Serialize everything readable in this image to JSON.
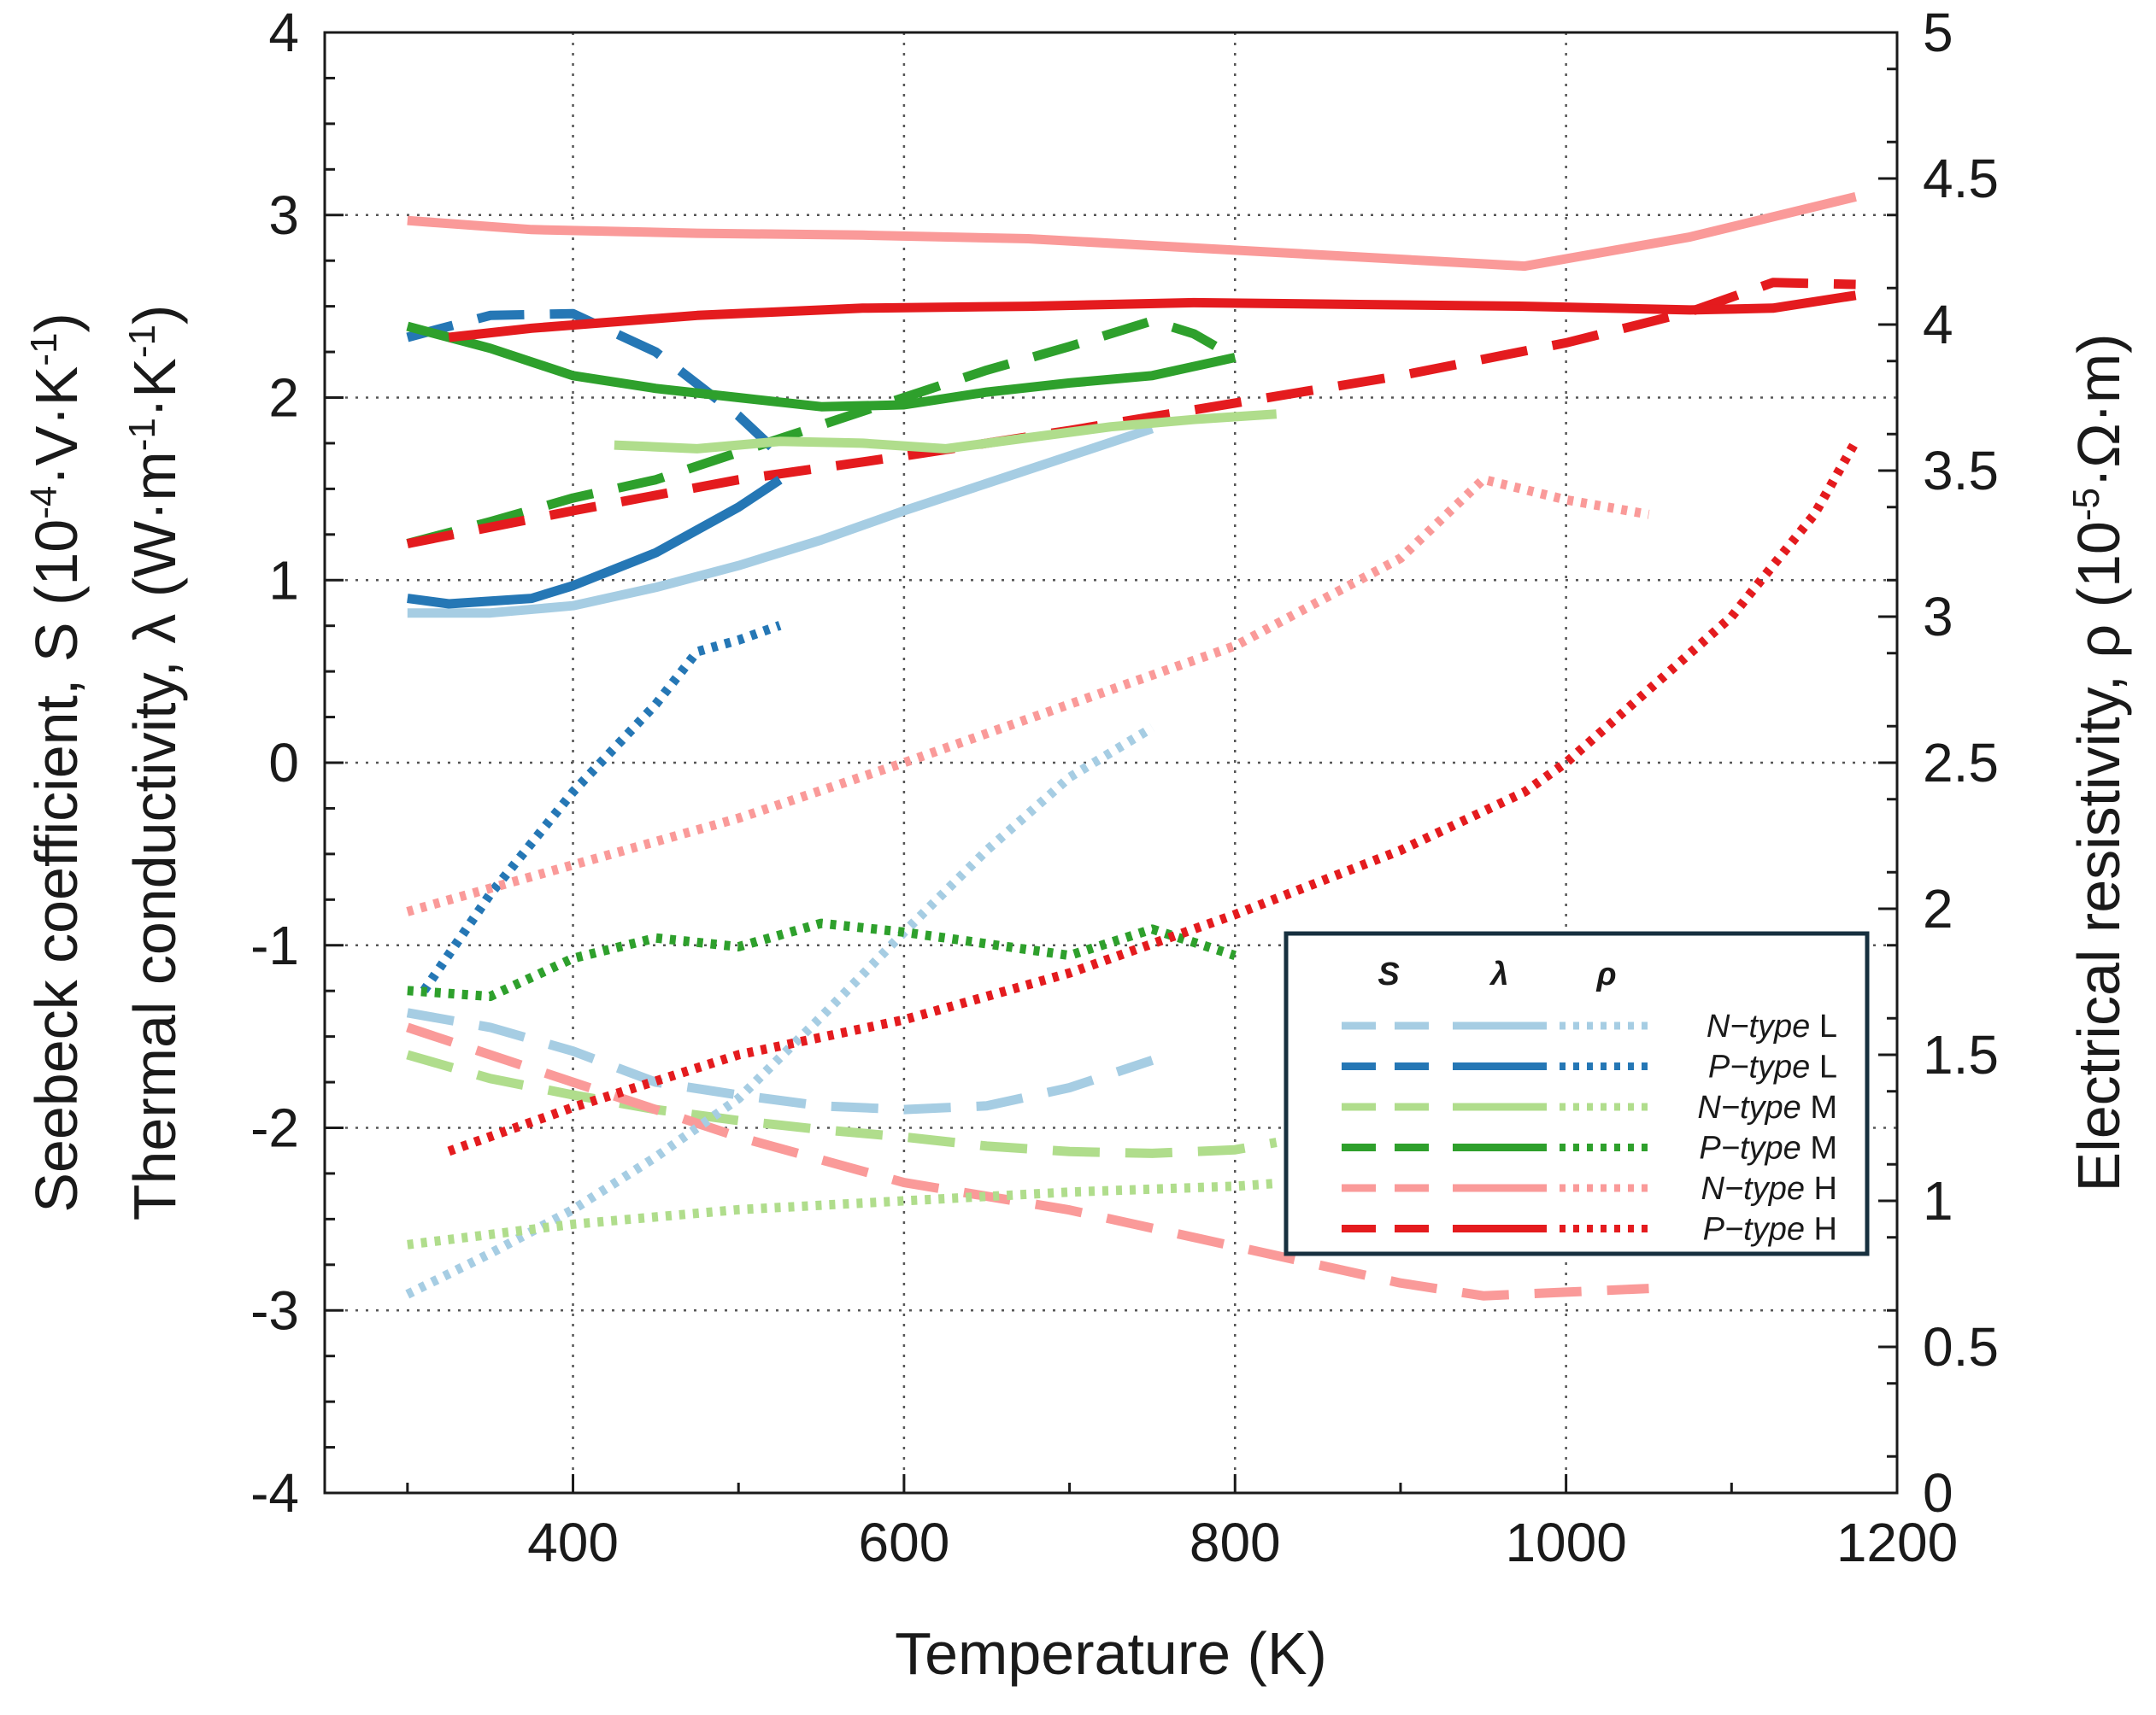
{
  "chart_data": {
    "type": "line",
    "x_axis": {
      "label": "Temperature (K)",
      "range": [
        250,
        1200
      ],
      "ticks": [
        400,
        600,
        800,
        1000,
        1200
      ],
      "tick_labels": [
        "400",
        "600",
        "800",
        "1000",
        "1200"
      ]
    },
    "y_axis_left": {
      "label_line1": "Seebeck coefficient, S (10",
      "label_line1_sup1": "-4",
      "label_line1_mid": "·V·K",
      "label_line1_sup2": "-1",
      "label_line1_end": ")",
      "label_line2": "Thermal conductivity, λ (W·m",
      "label_line2_sup1": "-1",
      "label_line2_mid": "·K",
      "label_line2_sup2": "-1",
      "label_line2_end": ")",
      "range": [
        -4,
        4
      ],
      "ticks": [
        -4,
        -3,
        -2,
        -1,
        0,
        1,
        2,
        3,
        4
      ],
      "tick_labels": [
        "-4",
        "-3",
        "-2",
        "-1",
        "0",
        "1",
        "2",
        "3",
        "4"
      ]
    },
    "y_axis_right": {
      "label": "Electrical resistivity, ρ (10",
      "label_sup": "-5",
      "label_end": "·Ω·m)",
      "range": [
        0,
        5
      ],
      "ticks": [
        0,
        0.5,
        1,
        1.5,
        2,
        2.5,
        3,
        3.5,
        4,
        4.5,
        5
      ],
      "tick_labels": [
        "0",
        "0.5",
        "1",
        "1.5",
        "2",
        "2.5",
        "3",
        "3.5",
        "4",
        "4.5",
        "5"
      ]
    },
    "grid": true,
    "legend_position": "bottom-right",
    "legend": {
      "headers": [
        "S",
        "λ",
        "ρ"
      ],
      "rows": [
        {
          "type": "N−type",
          "grade": "L",
          "color": "#a6cde3"
        },
        {
          "type": "P−type",
          "grade": "L",
          "color": "#2577b5"
        },
        {
          "type": "N−type",
          "grade": "M",
          "color": "#b0dd8c"
        },
        {
          "type": "P−type",
          "grade": "M",
          "color": "#2ea02c"
        },
        {
          "type": "N−type",
          "grade": "H",
          "color": "#fa9a99"
        },
        {
          "type": "P−type",
          "grade": "H",
          "color": "#e41b1e"
        }
      ]
    },
    "series": [
      {
        "quantity": "S",
        "material": "N-type L",
        "axis": "left",
        "color": "#a6cde3",
        "dash": "dashed",
        "x": [
          300,
          350,
          400,
          450,
          500,
          550,
          600,
          650,
          700,
          750
        ],
        "y": [
          -1.37,
          -1.45,
          -1.58,
          -1.75,
          -1.82,
          -1.88,
          -1.9,
          -1.88,
          -1.78,
          -1.63
        ]
      },
      {
        "quantity": "S",
        "material": "P-type L",
        "axis": "left",
        "color": "#2577b5",
        "dash": "dashed",
        "x": [
          300,
          350,
          400,
          450,
          500,
          520
        ],
        "y": [
          2.33,
          2.45,
          2.46,
          2.25,
          1.9,
          1.73
        ]
      },
      {
        "quantity": "S",
        "material": "N-type M",
        "axis": "left",
        "color": "#b0dd8c",
        "dash": "dashed",
        "x": [
          300,
          350,
          400,
          450,
          500,
          550,
          600,
          650,
          700,
          750,
          800,
          825
        ],
        "y": [
          -1.6,
          -1.73,
          -1.82,
          -1.9,
          -1.96,
          -2.01,
          -2.05,
          -2.1,
          -2.13,
          -2.14,
          -2.12,
          -2.08
        ]
      },
      {
        "quantity": "S",
        "material": "P-type M",
        "axis": "left",
        "color": "#2ea02c",
        "dash": "dashed",
        "x": [
          300,
          350,
          400,
          450,
          500,
          550,
          600,
          650,
          700,
          750,
          775,
          800
        ],
        "y": [
          1.2,
          1.32,
          1.45,
          1.55,
          1.7,
          1.85,
          2.0,
          2.15,
          2.28,
          2.42,
          2.35,
          2.22
        ]
      },
      {
        "quantity": "S",
        "material": "N-type H",
        "axis": "left",
        "color": "#fa9a99",
        "dash": "dashed",
        "x": [
          300,
          400,
          500,
          600,
          700,
          800,
          900,
          950,
          1000,
          1050
        ],
        "y": [
          -1.45,
          -1.75,
          -2.05,
          -2.3,
          -2.45,
          -2.65,
          -2.85,
          -2.92,
          -2.9,
          -2.88
        ]
      },
      {
        "quantity": "S",
        "material": "P-type H",
        "axis": "left",
        "color": "#e41b1e",
        "dash": "dashed",
        "x": [
          300,
          400,
          500,
          600,
          700,
          800,
          900,
          1000,
          1075,
          1125,
          1175
        ],
        "y": [
          1.2,
          1.38,
          1.55,
          1.68,
          1.82,
          1.97,
          2.12,
          2.3,
          2.47,
          2.63,
          2.62
        ]
      },
      {
        "quantity": "λ",
        "material": "N-type L",
        "axis": "left",
        "color": "#a6cde3",
        "dash": "solid",
        "x": [
          300,
          350,
          400,
          450,
          500,
          550,
          600,
          650,
          700,
          750
        ],
        "y": [
          0.82,
          0.82,
          0.86,
          0.96,
          1.08,
          1.22,
          1.38,
          1.53,
          1.68,
          1.83
        ]
      },
      {
        "quantity": "λ",
        "material": "P-type L",
        "axis": "left",
        "color": "#2577b5",
        "dash": "solid",
        "x": [
          300,
          325,
          375,
          400,
          450,
          500,
          525
        ],
        "y": [
          0.9,
          0.87,
          0.9,
          0.97,
          1.15,
          1.4,
          1.55
        ]
      },
      {
        "quantity": "λ",
        "material": "N-type M",
        "axis": "left",
        "color": "#b0dd8c",
        "dash": "solid",
        "x": [
          425,
          475,
          525,
          575,
          625,
          675,
          725,
          775,
          825
        ],
        "y": [
          1.74,
          1.72,
          1.76,
          1.75,
          1.72,
          1.78,
          1.84,
          1.88,
          1.91
        ]
      },
      {
        "quantity": "λ",
        "material": "P-type M",
        "axis": "left",
        "color": "#2ea02c",
        "dash": "solid",
        "x": [
          300,
          350,
          400,
          450,
          500,
          550,
          600,
          650,
          700,
          750,
          800
        ],
        "y": [
          2.39,
          2.27,
          2.12,
          2.05,
          2.0,
          1.95,
          1.96,
          2.03,
          2.08,
          2.12,
          2.22
        ]
      },
      {
        "quantity": "λ",
        "material": "N-type H",
        "axis": "left",
        "color": "#fa9a99",
        "dash": "solid",
        "x": [
          300,
          375,
          475,
          575,
          675,
          775,
          875,
          975,
          1075,
          1175
        ],
        "y": [
          2.97,
          2.92,
          2.9,
          2.89,
          2.87,
          2.82,
          2.77,
          2.72,
          2.88,
          3.1
        ]
      },
      {
        "quantity": "λ",
        "material": "P-type H",
        "axis": "left",
        "color": "#e41b1e",
        "dash": "solid",
        "x": [
          325,
          375,
          475,
          575,
          675,
          775,
          875,
          975,
          1075,
          1125,
          1175
        ],
        "y": [
          2.33,
          2.38,
          2.45,
          2.49,
          2.5,
          2.52,
          2.51,
          2.5,
          2.48,
          2.49,
          2.56
        ]
      },
      {
        "quantity": "ρ",
        "material": "N-type L",
        "axis": "right",
        "color": "#a6cde3",
        "dash": "dotted",
        "x": [
          300,
          350,
          400,
          450,
          500,
          550,
          600,
          650,
          700,
          750
        ],
        "y": [
          0.68,
          0.82,
          0.97,
          1.15,
          1.35,
          1.63,
          1.92,
          2.2,
          2.45,
          2.62
        ]
      },
      {
        "quantity": "ρ",
        "material": "P-type L",
        "axis": "right",
        "color": "#2577b5",
        "dash": "dotted",
        "x": [
          310,
          350,
          400,
          450,
          475,
          500,
          525
        ],
        "y": [
          1.72,
          2.05,
          2.4,
          2.7,
          2.88,
          2.92,
          2.97
        ]
      },
      {
        "quantity": "ρ",
        "material": "N-type M",
        "axis": "right",
        "color": "#b0dd8c",
        "dash": "dotted",
        "x": [
          300,
          400,
          500,
          600,
          700,
          800,
          825
        ],
        "y": [
          0.85,
          0.92,
          0.97,
          1.0,
          1.03,
          1.05,
          1.06
        ]
      },
      {
        "quantity": "ρ",
        "material": "P-type M",
        "axis": "right",
        "color": "#2ea02c",
        "dash": "dotted",
        "x": [
          300,
          350,
          400,
          450,
          500,
          550,
          600,
          650,
          700,
          750,
          800
        ],
        "y": [
          1.72,
          1.7,
          1.83,
          1.9,
          1.87,
          1.95,
          1.92,
          1.88,
          1.84,
          1.93,
          1.84
        ]
      },
      {
        "quantity": "ρ",
        "material": "N-type H",
        "axis": "right",
        "color": "#fa9a99",
        "dash": "dotted",
        "x": [
          300,
          400,
          500,
          600,
          700,
          800,
          900,
          950,
          1000,
          1050
        ],
        "y": [
          1.99,
          2.15,
          2.31,
          2.5,
          2.7,
          2.9,
          3.2,
          3.47,
          3.4,
          3.35
        ]
      },
      {
        "quantity": "ρ",
        "material": "P-type H",
        "axis": "right",
        "color": "#e41b1e",
        "dash": "dotted",
        "x": [
          325,
          400,
          500,
          600,
          700,
          800,
          900,
          975,
          1000,
          1050,
          1100,
          1150,
          1175
        ],
        "y": [
          1.17,
          1.32,
          1.5,
          1.62,
          1.78,
          1.98,
          2.2,
          2.4,
          2.5,
          2.75,
          3.0,
          3.35,
          3.6
        ]
      }
    ]
  }
}
